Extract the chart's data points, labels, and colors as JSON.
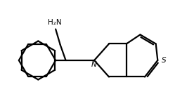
{
  "bg_color": "#ffffff",
  "line_color": "#000000",
  "line_width": 1.6,
  "text_color": "#000000",
  "nh2_label": "H₂N",
  "n_label": "N",
  "s_label": "S",
  "figsize": [
    2.76,
    1.51
  ],
  "dpi": 100,
  "xlim": [
    0.0,
    10.5
  ],
  "ylim": [
    0.5,
    5.8
  ]
}
